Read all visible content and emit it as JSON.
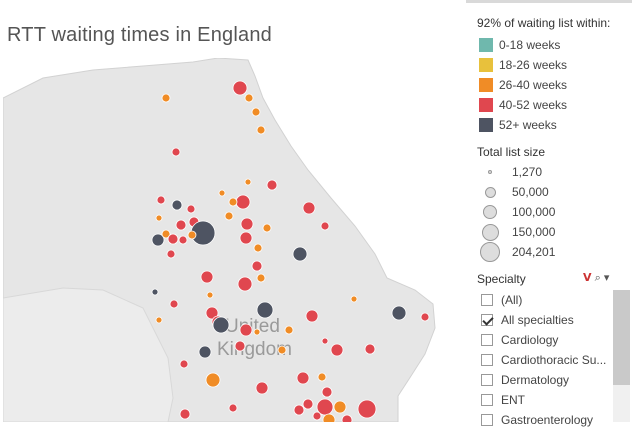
{
  "title": "RTT waiting times in England",
  "map": {
    "watermark_line1": "United",
    "watermark_line2": "Kingdom"
  },
  "color_legend": {
    "title": "92% of waiting list within:",
    "items": [
      {
        "label": "0-18 weeks",
        "color": "#6fb8ad"
      },
      {
        "label": "18-26 weeks",
        "color": "#e8c13c"
      },
      {
        "label": "26-40 weeks",
        "color": "#f08c26"
      },
      {
        "label": "40-52 weeks",
        "color": "#e0474f"
      },
      {
        "label": "52+ weeks",
        "color": "#4e5462"
      }
    ]
  },
  "size_legend": {
    "title": "Total list size",
    "items": [
      "1,270",
      "50,000",
      "100,000",
      "150,000",
      "204,201"
    ]
  },
  "specialty": {
    "title": "Specialty",
    "options": [
      {
        "label": "(All)",
        "checked": false
      },
      {
        "label": "All specialties",
        "checked": true
      },
      {
        "label": "Cardiology",
        "checked": false
      },
      {
        "label": "Cardiothoracic Su...",
        "checked": false
      },
      {
        "label": "Dermatology",
        "checked": false
      },
      {
        "label": "ENT",
        "checked": false
      },
      {
        "label": "Gastroenterology",
        "checked": false
      }
    ]
  }
}
